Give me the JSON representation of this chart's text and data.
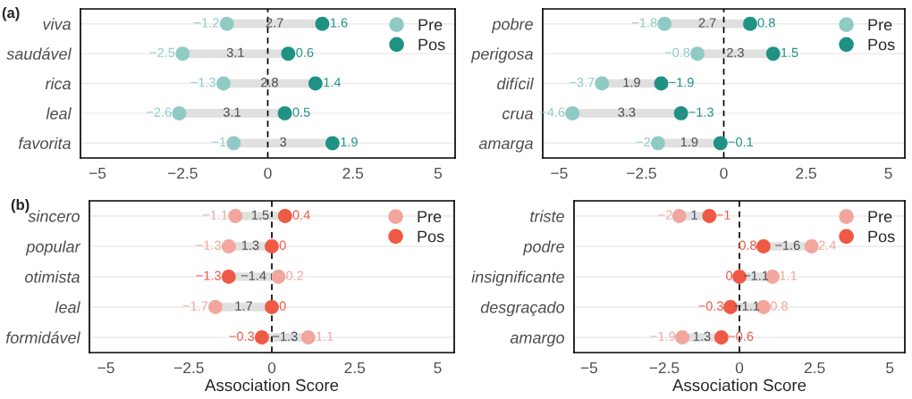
{
  "chart_data": [
    {
      "type": "scatter",
      "title": "(a)",
      "orientation": "horizontal",
      "categories": [
        "viva",
        "saudável",
        "rica",
        "leal",
        "favorita"
      ],
      "xlim": [
        -5.5,
        5.5
      ],
      "xticks": [
        -5,
        -2.5,
        0,
        2.5,
        5
      ],
      "grid": "y",
      "legend": "top right",
      "data_labels": true,
      "ref_lines": [
        {
          "axis": "x",
          "value": 0,
          "line_style": "dashed",
          "color": "#000000"
        }
      ],
      "annotations": [
        "2.7",
        "3.1",
        "2.8",
        "3.1",
        "3"
      ],
      "series": [
        {
          "name": "Pre",
          "color": "#8fcbc4",
          "values": [
            -1.2,
            -2.5,
            -1.3,
            -2.6,
            -1
          ]
        },
        {
          "name": "Pos",
          "color": "#1f9284",
          "values": [
            1.6,
            0.6,
            1.4,
            0.5,
            1.9
          ]
        }
      ]
    },
    {
      "type": "scatter",
      "orientation": "horizontal",
      "categories": [
        "pobre",
        "perigosa",
        "difícil",
        "crua",
        "amarga"
      ],
      "xlim": [
        -5.5,
        5.5
      ],
      "xticks": [
        -5,
        -2.5,
        0,
        2.5,
        5
      ],
      "grid": "y",
      "legend": "top right",
      "data_labels": true,
      "ref_lines": [
        {
          "axis": "x",
          "value": 0,
          "line_style": "dashed",
          "color": "#000000"
        }
      ],
      "annotations": [
        "2.7",
        "2.3",
        "1.9",
        "3.3",
        "1.9"
      ],
      "series": [
        {
          "name": "Pre",
          "color": "#8fcbc4",
          "values": [
            -1.8,
            -0.8,
            -3.7,
            -4.6,
            -2
          ]
        },
        {
          "name": "Pos",
          "color": "#1f9284",
          "values": [
            0.8,
            1.5,
            -1.9,
            -1.3,
            -0.1
          ]
        }
      ]
    },
    {
      "type": "scatter",
      "title": "(b)",
      "xlabel": "Association Score",
      "orientation": "horizontal",
      "categories": [
        "sincero",
        "popular",
        "otimista",
        "leal",
        "formidável"
      ],
      "xlim": [
        -5.5,
        5.5
      ],
      "xticks": [
        -5,
        -2.5,
        0,
        2.5,
        5
      ],
      "grid": "y",
      "legend": "top right",
      "data_labels": true,
      "ref_lines": [
        {
          "axis": "x",
          "value": 0,
          "line_style": "dashed",
          "color": "#000000"
        }
      ],
      "annotations": [
        "1.5",
        "1.3",
        "−1.4",
        "1.7",
        "−1.3"
      ],
      "series": [
        {
          "name": "Pre",
          "color": "#f2a69e",
          "values": [
            -1.1,
            -1.3,
            0.2,
            -1.7,
            1.1
          ]
        },
        {
          "name": "Pos",
          "color": "#ee5a45",
          "values": [
            0.4,
            0,
            -1.3,
            0,
            -0.3
          ]
        }
      ]
    },
    {
      "type": "scatter",
      "xlabel": "Association Score",
      "orientation": "horizontal",
      "categories": [
        "triste",
        "podre",
        "insignificante",
        "desgraçado",
        "amargo"
      ],
      "xlim": [
        -5.5,
        5.5
      ],
      "xticks": [
        -5,
        -2.5,
        0,
        2.5,
        5
      ],
      "grid": "y",
      "legend": "top right",
      "data_labels": true,
      "ref_lines": [
        {
          "axis": "x",
          "value": 0,
          "line_style": "dashed",
          "color": "#000000"
        }
      ],
      "annotations": [
        "1",
        "−1.6",
        "−1.1",
        "−1.1",
        "1.3"
      ],
      "series": [
        {
          "name": "Pre",
          "color": "#f2a69e",
          "values": [
            -2,
            2.4,
            1.1,
            0.8,
            -1.9
          ]
        },
        {
          "name": "Pos",
          "color": "#ee5a45",
          "values": [
            -1,
            0.8,
            0,
            -0.3,
            -0.6
          ]
        }
      ]
    }
  ]
}
